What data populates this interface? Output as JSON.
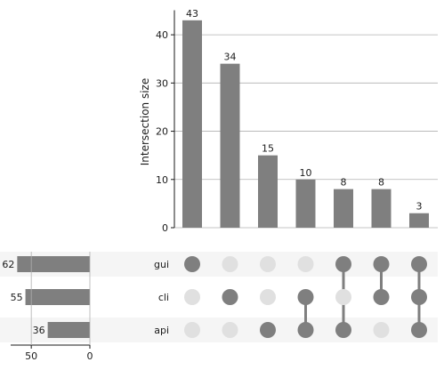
{
  "chart_data": {
    "type": "upset",
    "ylabel": "Intersection size",
    "ylim": [
      0,
      45
    ],
    "yticks": [
      0,
      10,
      20,
      30,
      40
    ],
    "sets": [
      {
        "name": "gui",
        "size": 62
      },
      {
        "name": "cli",
        "size": 55
      },
      {
        "name": "api",
        "size": 36
      }
    ],
    "set_size_ticks": [
      50,
      0
    ],
    "set_size_xlim": [
      0,
      70
    ],
    "intersections": [
      {
        "members": [
          "gui"
        ],
        "value": 43
      },
      {
        "members": [
          "cli"
        ],
        "value": 34
      },
      {
        "members": [
          "api"
        ],
        "value": 15
      },
      {
        "members": [
          "cli",
          "api"
        ],
        "value": 10
      },
      {
        "members": [
          "gui",
          "api"
        ],
        "value": 8
      },
      {
        "members": [
          "gui",
          "cli"
        ],
        "value": 8
      },
      {
        "members": [
          "gui",
          "cli",
          "api"
        ],
        "value": 3
      }
    ],
    "grid": true,
    "colors": {
      "bar": "#7f7f7f",
      "dot_active": "#7f7f7f",
      "dot_inactive": "#e0e0e0",
      "stripe": "#f5f5f5",
      "grid": "#b0b0b0"
    }
  }
}
